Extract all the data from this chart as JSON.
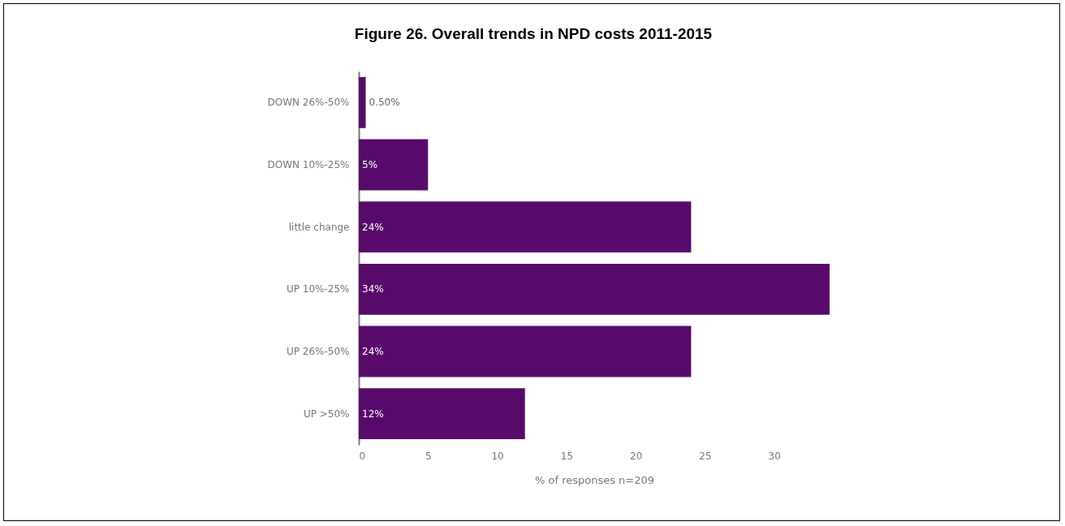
{
  "chart_data": {
    "type": "bar",
    "orientation": "horizontal",
    "title": "Figure 26. Overall trends in NPD costs 2011-2015",
    "xlabel": "% of responses n=209",
    "categories": [
      "DOWN 26%-50%",
      "DOWN 10%-25%",
      "little change",
      "UP 10%-25%",
      "UP 26%-50%",
      "UP >50%"
    ],
    "values": [
      0.5,
      5,
      24,
      34,
      24,
      12
    ],
    "value_labels": [
      "0.50%",
      "5%",
      "24%",
      "34%",
      "24%",
      "12%"
    ],
    "color": "#580a6b",
    "xlim": [
      0,
      34
    ],
    "xticks": [
      0,
      5,
      10,
      15,
      20,
      25,
      30
    ],
    "grid": false
  }
}
